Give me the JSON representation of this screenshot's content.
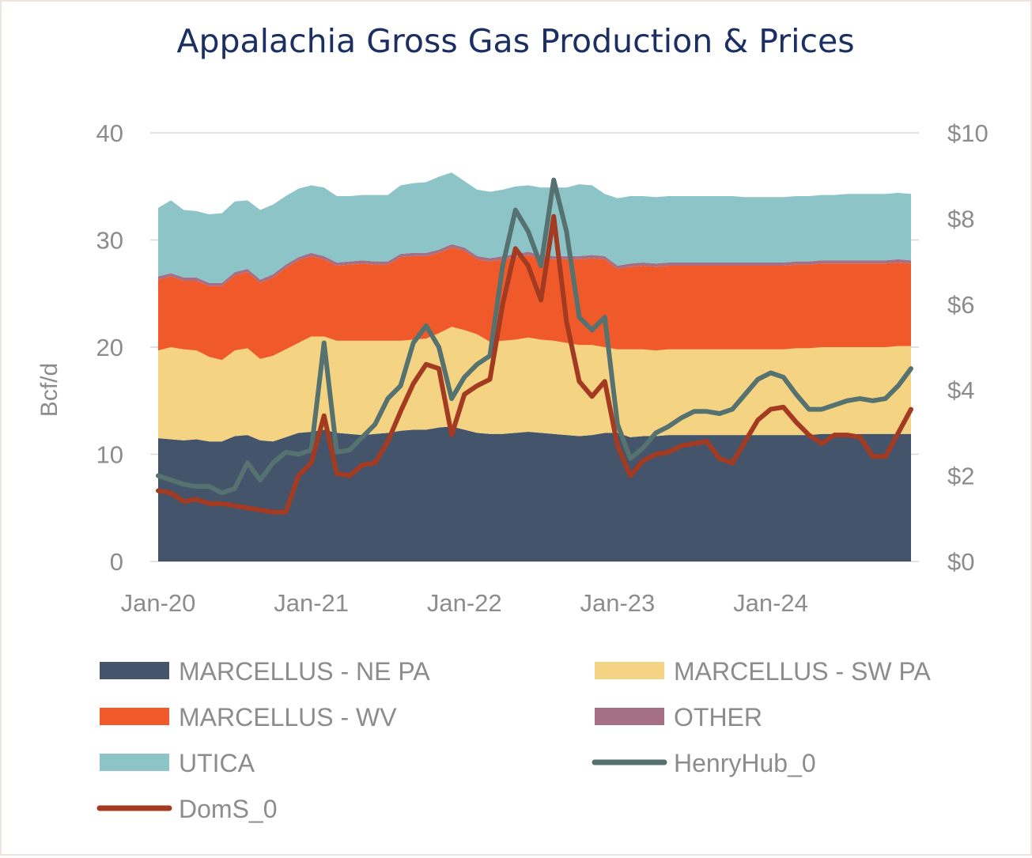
{
  "chart_data": {
    "type": "area",
    "title": "Appalachia Gross Gas Production & Prices",
    "ylabel": "Bcf/d",
    "y2label": "",
    "ylim": [
      0,
      40
    ],
    "y2lim": [
      0,
      10
    ],
    "y_ticks": [
      "0",
      "10",
      "20",
      "30",
      "40"
    ],
    "y2_ticks": [
      "$0",
      "$2",
      "$4",
      "$6",
      "$8",
      "$10"
    ],
    "x_ticks": [
      "Jan-20",
      "Jan-21",
      "Jan-22",
      "Jan-23",
      "Jan-24"
    ],
    "x_start": "2020-01",
    "x_end": "2024-12",
    "grid": true,
    "legend_position": "bottom",
    "colors": {
      "MARCELLUS - NE PA": "#44546a",
      "MARCELLUS - SW PA": "#f4d383",
      "MARCELLUS - WV": "#f05a2a",
      "OTHER": "#a56f86",
      "UTICA": "#8dc4c7",
      "HenryHub_0": "#557270",
      "DomS_0": "#a33a22"
    },
    "series": [
      {
        "name": "MARCELLUS - NE PA",
        "kind": "stacked-area",
        "values": [
          11.5,
          11.4,
          11.3,
          11.4,
          11.2,
          11.2,
          11.7,
          11.8,
          11.3,
          11.2,
          11.6,
          12.0,
          12.1,
          12.3,
          12.0,
          11.9,
          11.8,
          11.9,
          12.0,
          12.2,
          12.3,
          12.3,
          12.5,
          12.6,
          12.3,
          12.0,
          11.9,
          11.9,
          12.0,
          12.1,
          12.0,
          11.9,
          11.8,
          11.7,
          11.8,
          12.0,
          12.0,
          11.6,
          11.7,
          11.7,
          11.8,
          11.8,
          11.8,
          11.8,
          11.8,
          11.8,
          11.8,
          11.8,
          11.8,
          11.8,
          11.8,
          11.8,
          11.9,
          11.9,
          11.9,
          11.9,
          11.9,
          11.9,
          11.9,
          11.9
        ]
      },
      {
        "name": "MARCELLUS - SW PA",
        "kind": "stacked-area",
        "values": [
          8.2,
          8.6,
          8.5,
          8.3,
          7.9,
          7.6,
          8.0,
          8.1,
          7.6,
          8.0,
          8.2,
          8.4,
          8.9,
          8.7,
          8.6,
          8.7,
          8.8,
          8.7,
          8.6,
          8.4,
          8.4,
          8.5,
          8.8,
          9.3,
          9.3,
          9.2,
          8.6,
          8.7,
          8.7,
          8.8,
          8.7,
          8.7,
          8.6,
          8.5,
          8.4,
          8.0,
          7.8,
          8.2,
          8.1,
          8.0,
          8.0,
          8.0,
          8.0,
          8.0,
          8.0,
          8.0,
          8.0,
          8.0,
          8.0,
          8.0,
          8.1,
          8.1,
          8.1,
          8.1,
          8.1,
          8.1,
          8.1,
          8.1,
          8.2,
          8.2
        ]
      },
      {
        "name": "MARCELLUS - WV",
        "kind": "stacked-area",
        "values": [
          6.6,
          6.6,
          6.4,
          6.5,
          6.6,
          6.9,
          7.0,
          7.1,
          7.1,
          7.3,
          7.6,
          7.7,
          7.5,
          7.2,
          7.0,
          7.1,
          7.2,
          7.1,
          7.1,
          7.8,
          7.8,
          7.7,
          7.5,
          7.4,
          7.4,
          7.0,
          7.5,
          7.6,
          7.7,
          7.7,
          7.6,
          7.6,
          7.8,
          8.0,
          8.1,
          8.2,
          7.5,
          7.7,
          7.8,
          7.8,
          7.8,
          7.8,
          7.8,
          7.8,
          7.8,
          7.8,
          7.8,
          7.8,
          7.8,
          7.8,
          7.8,
          7.8,
          7.8,
          7.8,
          7.8,
          7.8,
          7.8,
          7.8,
          7.8,
          7.7
        ]
      },
      {
        "name": "OTHER",
        "kind": "stacked-area",
        "values": [
          0.3,
          0.3,
          0.3,
          0.3,
          0.3,
          0.3,
          0.3,
          0.3,
          0.3,
          0.3,
          0.3,
          0.3,
          0.3,
          0.3,
          0.3,
          0.3,
          0.3,
          0.3,
          0.3,
          0.3,
          0.3,
          0.3,
          0.3,
          0.3,
          0.3,
          0.3,
          0.3,
          0.3,
          0.3,
          0.3,
          0.3,
          0.3,
          0.3,
          0.3,
          0.3,
          0.3,
          0.3,
          0.3,
          0.3,
          0.3,
          0.3,
          0.3,
          0.3,
          0.3,
          0.3,
          0.3,
          0.3,
          0.3,
          0.3,
          0.3,
          0.3,
          0.3,
          0.3,
          0.3,
          0.3,
          0.3,
          0.3,
          0.3,
          0.3,
          0.3
        ]
      },
      {
        "name": "UTICA",
        "kind": "stacked-area",
        "values": [
          6.4,
          6.8,
          6.3,
          6.2,
          6.4,
          6.5,
          6.6,
          6.4,
          6.5,
          6.5,
          6.4,
          6.4,
          6.3,
          6.4,
          6.2,
          6.1,
          6.1,
          6.2,
          6.2,
          6.4,
          6.5,
          6.6,
          6.8,
          6.7,
          6.2,
          6.2,
          6.2,
          6.2,
          6.3,
          6.2,
          6.3,
          6.4,
          6.4,
          6.7,
          6.5,
          5.8,
          6.3,
          6.3,
          6.2,
          6.2,
          6.2,
          6.2,
          6.2,
          6.2,
          6.2,
          6.2,
          6.1,
          6.1,
          6.1,
          6.1,
          6.1,
          6.1,
          6.1,
          6.1,
          6.2,
          6.2,
          6.2,
          6.2,
          6.2,
          6.2
        ]
      },
      {
        "name": "HenryHub_0",
        "kind": "line",
        "axis": "right",
        "values": [
          2.0,
          1.9,
          1.8,
          1.75,
          1.75,
          1.6,
          1.7,
          2.3,
          1.9,
          2.3,
          2.55,
          2.5,
          2.6,
          5.1,
          2.55,
          2.6,
          2.9,
          3.2,
          3.8,
          4.1,
          5.1,
          5.5,
          5.0,
          3.8,
          4.3,
          4.6,
          4.8,
          6.9,
          8.2,
          7.7,
          6.9,
          8.9,
          7.7,
          5.7,
          5.4,
          5.7,
          3.2,
          2.4,
          2.65,
          3.0,
          3.15,
          3.35,
          3.5,
          3.5,
          3.45,
          3.55,
          3.9,
          4.25,
          4.4,
          4.3,
          3.9,
          3.55,
          3.55,
          3.65,
          3.75,
          3.8,
          3.75,
          3.8,
          4.1,
          4.5
        ]
      },
      {
        "name": "DomS_0",
        "kind": "line",
        "axis": "right",
        "values": [
          1.65,
          1.6,
          1.4,
          1.45,
          1.35,
          1.35,
          1.3,
          1.25,
          1.2,
          1.15,
          1.15,
          2.0,
          2.3,
          3.4,
          2.05,
          2.0,
          2.25,
          2.3,
          2.8,
          3.5,
          4.15,
          4.6,
          4.5,
          2.95,
          3.9,
          4.1,
          4.25,
          6.0,
          7.3,
          6.9,
          6.1,
          8.05,
          5.6,
          4.2,
          3.85,
          4.2,
          2.7,
          2.0,
          2.35,
          2.5,
          2.55,
          2.7,
          2.75,
          2.8,
          2.4,
          2.3,
          2.8,
          3.3,
          3.55,
          3.6,
          3.25,
          2.95,
          2.75,
          2.95,
          2.95,
          2.9,
          2.45,
          2.45,
          3.0,
          3.55
        ]
      }
    ]
  }
}
